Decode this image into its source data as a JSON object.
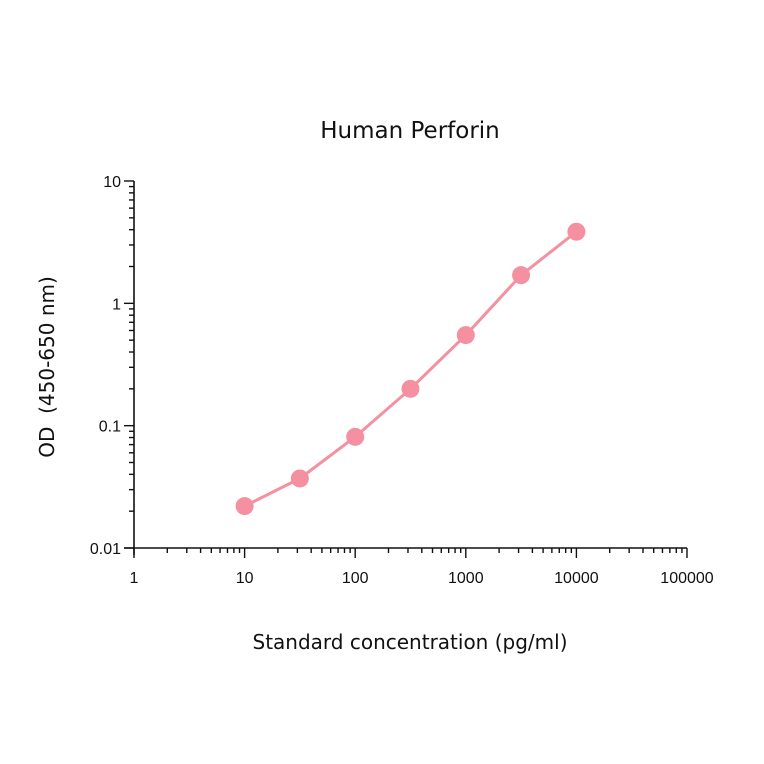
{
  "chart_data": {
    "type": "line",
    "title": "Human Perforin",
    "xlabel": "Standard concentration (pg/ml)",
    "ylabel": "OD  (450-650 nm)",
    "xscale": "log",
    "yscale": "log",
    "xlim": [
      1,
      100000
    ],
    "ylim": [
      0.01,
      10
    ],
    "x_tick_labels": [
      "1",
      "10",
      "100",
      "1000",
      "10000",
      "100000"
    ],
    "y_tick_labels": [
      "0.01",
      "0.1",
      "1",
      "10"
    ],
    "grid": false,
    "legend": null,
    "series": [
      {
        "name": "Human Perforin",
        "color": "#f4909f",
        "marker": "circle",
        "x": [
          10,
          31.6,
          100,
          316,
          1000,
          3160,
          10000
        ],
        "y": [
          0.022,
          0.037,
          0.081,
          0.2,
          0.55,
          1.7,
          3.85
        ]
      }
    ]
  }
}
